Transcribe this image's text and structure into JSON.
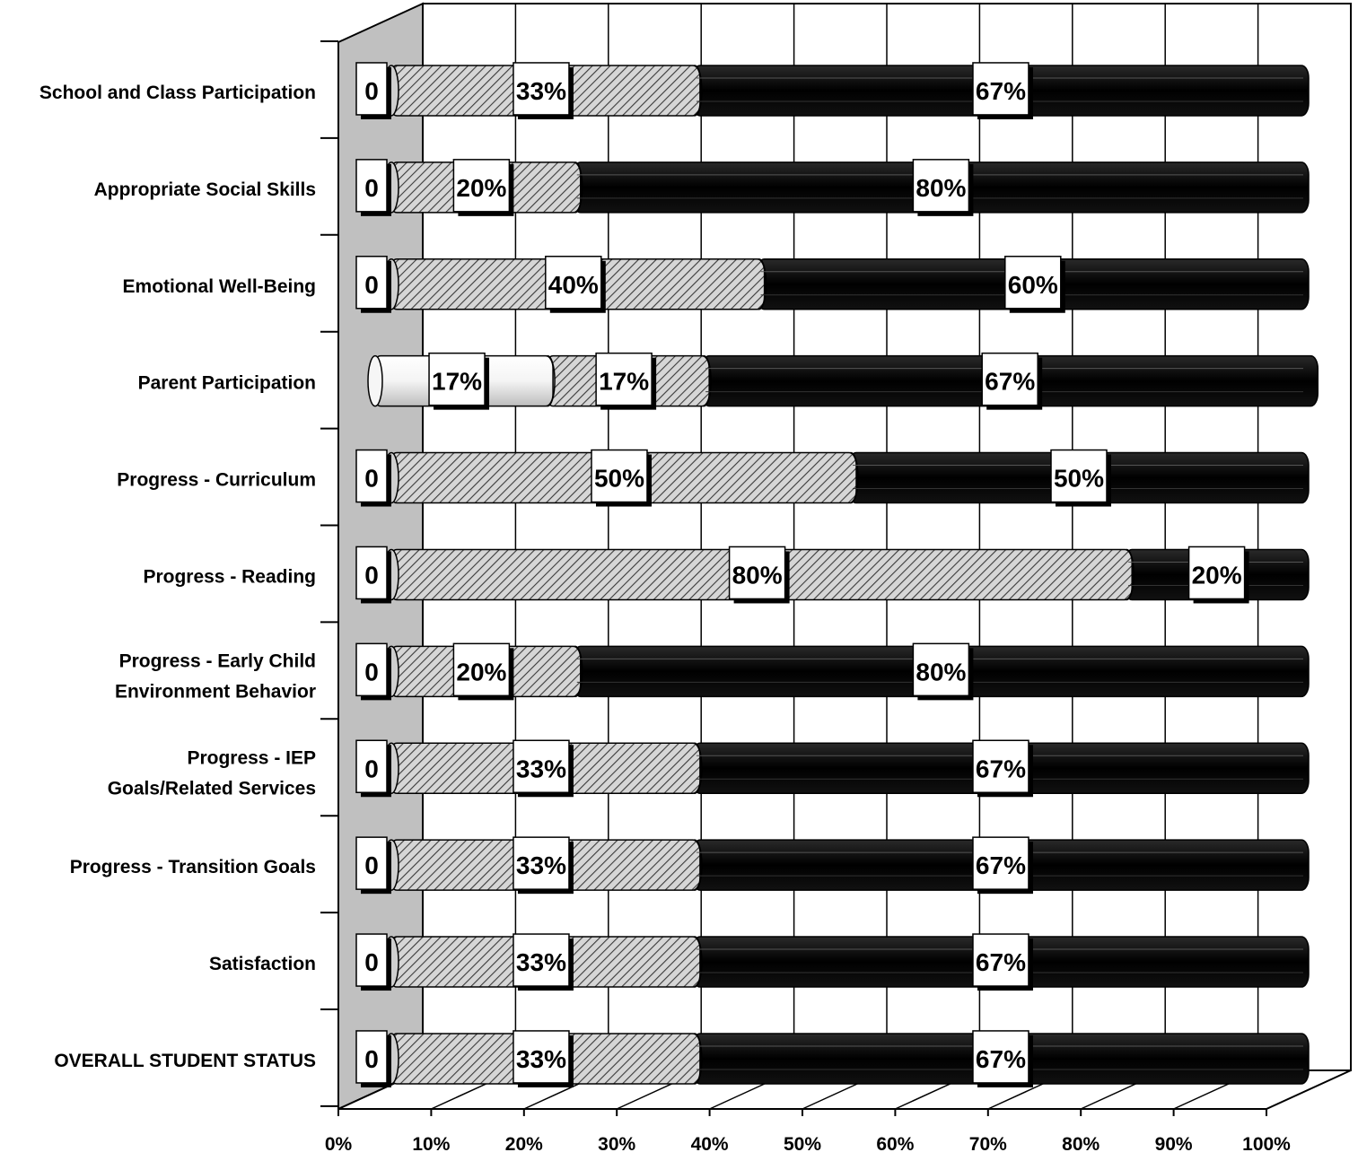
{
  "chart_data": {
    "type": "bar",
    "stacked": true,
    "orientation": "horizontal",
    "style": "3d-cylinder",
    "categories": [
      "School and Class Participation",
      "Appropriate Social Skills",
      "Emotional Well-Being",
      "Parent Participation",
      "Progress - Curriculum",
      "Progress - Reading",
      "Progress - Early Child Environment Behavior",
      "Progress - IEP Goals/Related Services",
      "Progress - Transition Goals",
      "Satisfaction",
      "OVERALL STUDENT STATUS"
    ],
    "series": [
      {
        "fill": "light-gradient",
        "values": [
          0,
          0,
          0,
          17,
          0,
          0,
          0,
          0,
          0,
          0,
          0
        ],
        "labels": [
          "0",
          "0",
          "0",
          "17%",
          "0",
          "0",
          "0",
          "0",
          "0",
          "0",
          "0"
        ]
      },
      {
        "fill": "diagonal-hatch",
        "values": [
          33,
          20,
          40,
          17,
          50,
          80,
          20,
          33,
          33,
          33,
          33
        ],
        "labels": [
          "33%",
          "20%",
          "40%",
          "17%",
          "50%",
          "80%",
          "20%",
          "33%",
          "33%",
          "33%",
          "33%"
        ]
      },
      {
        "fill": "black",
        "values": [
          67,
          80,
          60,
          67,
          50,
          20,
          80,
          67,
          67,
          67,
          67
        ],
        "labels": [
          "67%",
          "80%",
          "60%",
          "67%",
          "50%",
          "20%",
          "80%",
          "67%",
          "67%",
          "67%",
          "67%"
        ]
      }
    ],
    "x_tick_labels": [
      "0%",
      "10%",
      "20%",
      "30%",
      "40%",
      "50%",
      "60%",
      "70%",
      "80%",
      "90%",
      "100%"
    ],
    "xlim": [
      0,
      100
    ],
    "grid": true,
    "colors": {
      "light": "#f2f2f2",
      "hatch_bg": "#c8c8c8",
      "dark": "#000000",
      "wall": "#c0c0c0"
    }
  }
}
